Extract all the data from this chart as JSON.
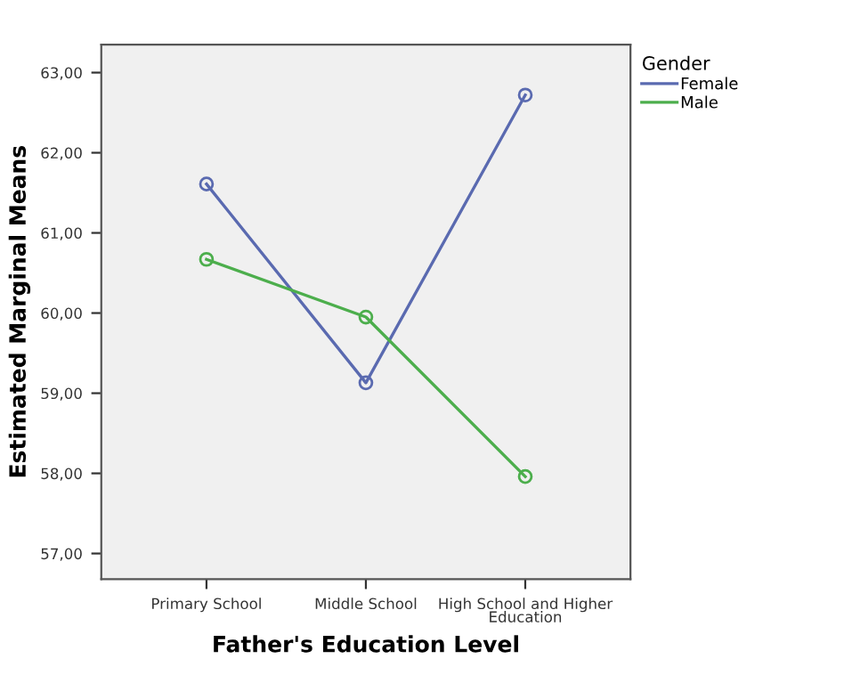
{
  "chart_data": {
    "type": "line",
    "xlabel": "Father's Education Level",
    "ylabel": "Estimated Marginal Means",
    "legend_title": "Gender",
    "legend": "top right",
    "marker": "circle",
    "grid": false,
    "categories": [
      "Primary School",
      "Middle School",
      "High School and Higher\nEducation"
    ],
    "series": [
      {
        "name": "Female",
        "color": "#5a6ab0",
        "values": [
          61.61,
          59.13,
          62.72
        ]
      },
      {
        "name": "Male",
        "color": "#4cae4c",
        "values": [
          60.67,
          59.95,
          57.96
        ]
      }
    ],
    "ylim": [
      56.68,
      63.35
    ],
    "yticks": [
      {
        "value": 57,
        "label": "57,00"
      },
      {
        "value": 58,
        "label": "58,00"
      },
      {
        "value": 59,
        "label": "59,00"
      },
      {
        "value": 60,
        "label": "60,00"
      },
      {
        "value": 61,
        "label": "61,00"
      },
      {
        "value": 62,
        "label": "62,00"
      },
      {
        "value": 63,
        "label": "63,00"
      }
    ]
  }
}
